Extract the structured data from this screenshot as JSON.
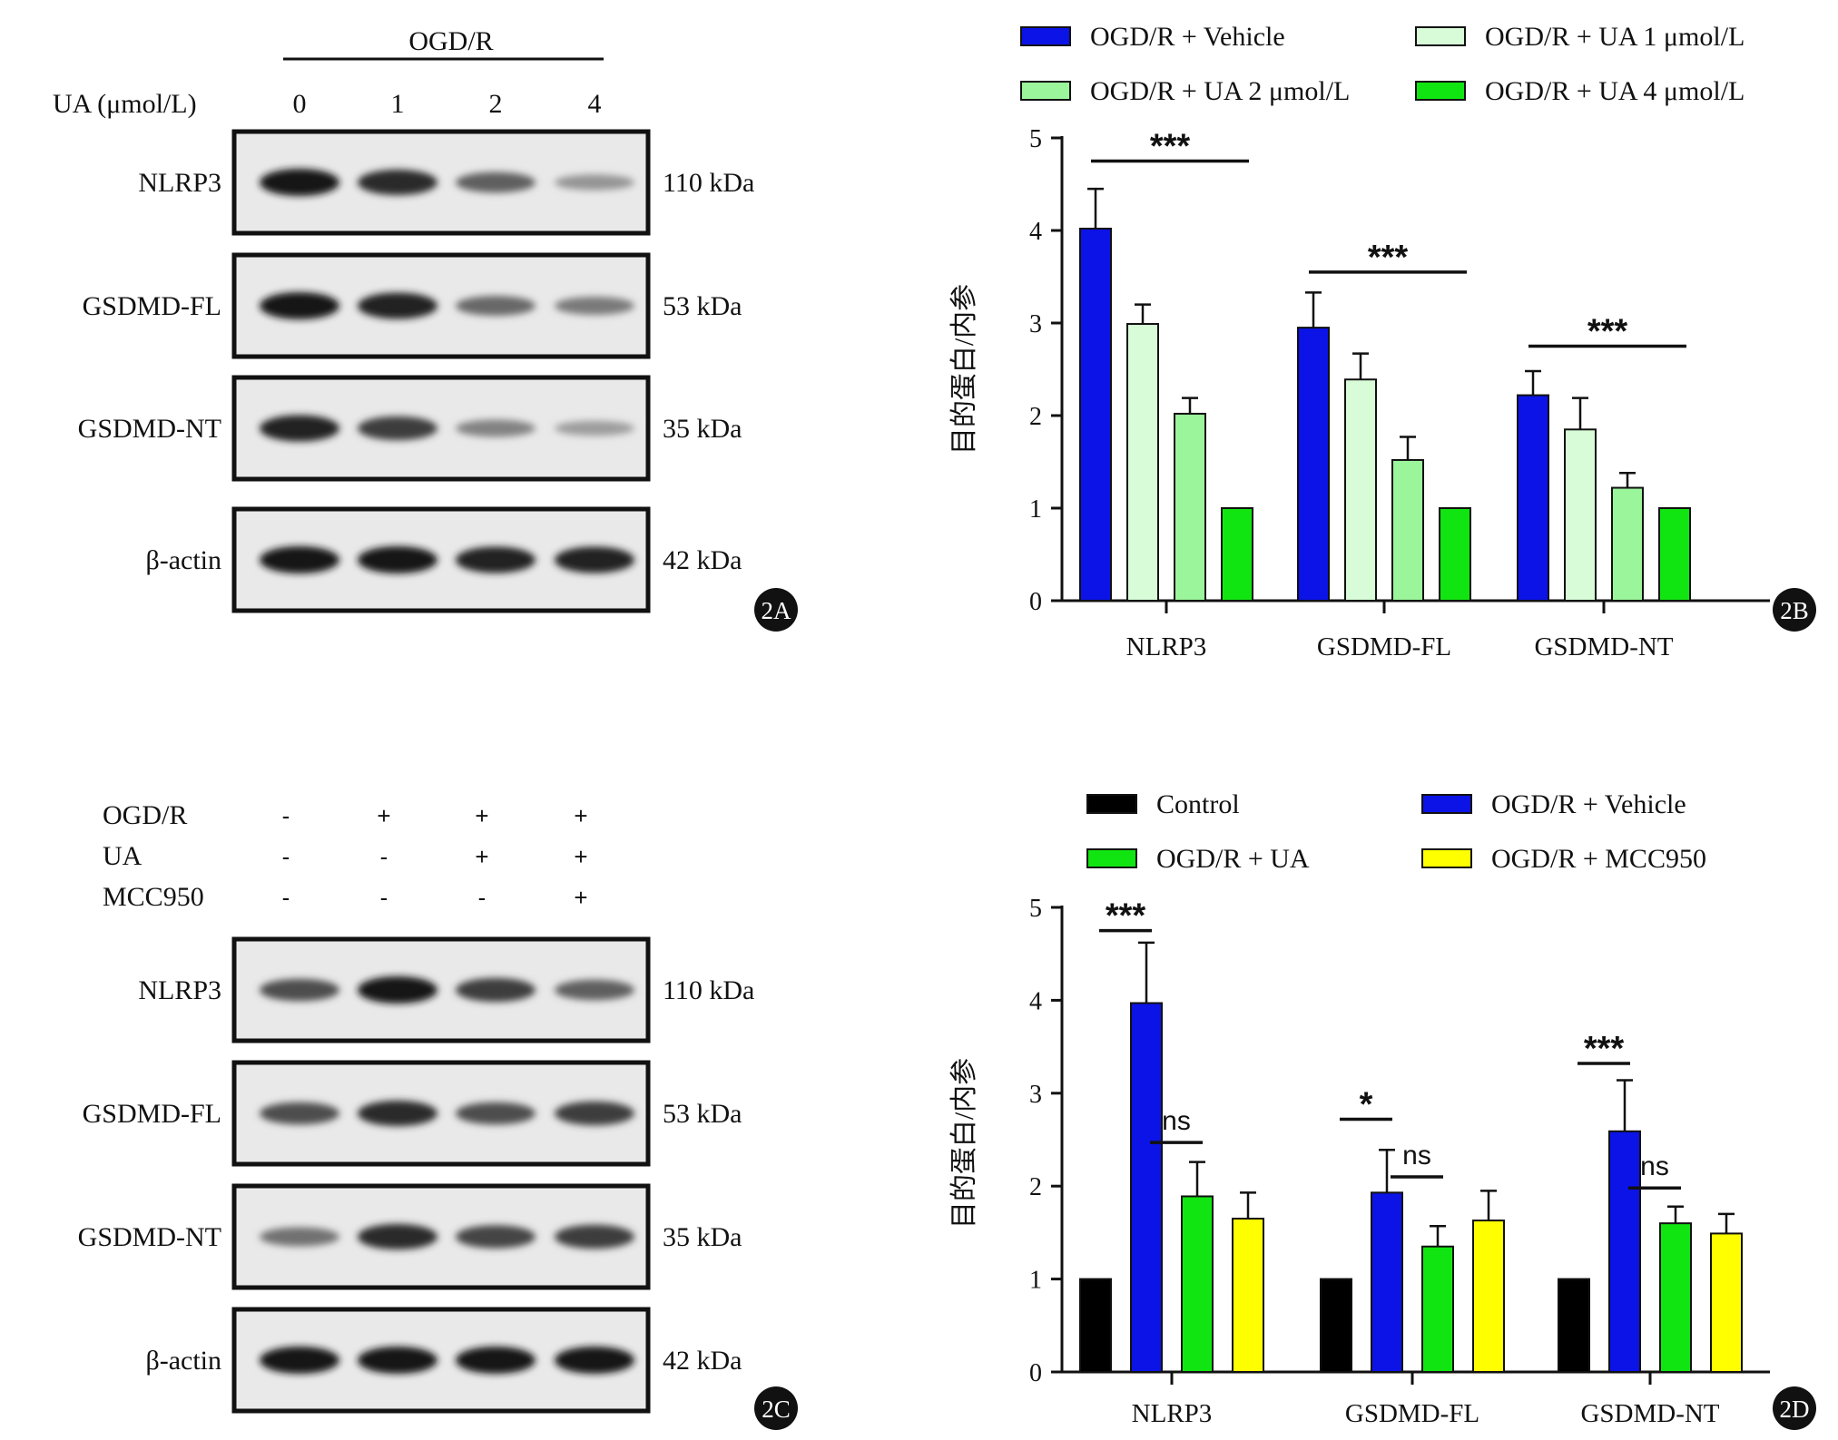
{
  "panels": [
    {
      "panel_label": "2A",
      "header": "OGD/R",
      "treatment_rows": [
        {
          "label": "UA (μmol/L)",
          "values": [
            "0",
            "1",
            "2",
            "4"
          ]
        }
      ],
      "blots": [
        {
          "protein": "NLRP3",
          "mw": "110 kDa",
          "intensities": [
            1.0,
            0.9,
            0.6,
            0.3
          ]
        },
        {
          "protein": "GSDMD-FL",
          "mw": "53 kDa",
          "intensities": [
            1.0,
            0.95,
            0.55,
            0.45
          ]
        },
        {
          "protein": "GSDMD-NT",
          "mw": "35 kDa",
          "intensities": [
            0.95,
            0.8,
            0.4,
            0.25
          ]
        },
        {
          "protein": "β-actin",
          "mw": "42 kDa",
          "intensities": [
            1.0,
            1.0,
            0.95,
            0.95
          ]
        }
      ]
    },
    {
      "panel_label": "2C",
      "header": "",
      "treatment_rows": [
        {
          "label": "OGD/R",
          "values": [
            "-",
            "+",
            "+",
            "+"
          ]
        },
        {
          "label": "UA",
          "values": [
            "-",
            "-",
            "+",
            "+"
          ]
        },
        {
          "label": "MCC950",
          "values": [
            "-",
            "-",
            "-",
            "+"
          ]
        }
      ],
      "blots": [
        {
          "protein": "NLRP3",
          "mw": "110 kDa",
          "intensities": [
            0.7,
            1.0,
            0.8,
            0.6
          ]
        },
        {
          "protein": "GSDMD-FL",
          "mw": "53 kDa",
          "intensities": [
            0.7,
            0.9,
            0.7,
            0.8
          ]
        },
        {
          "protein": "GSDMD-NT",
          "mw": "35 kDa",
          "intensities": [
            0.5,
            0.9,
            0.75,
            0.8
          ]
        },
        {
          "protein": "β-actin",
          "mw": "42 kDa",
          "intensities": [
            1.0,
            1.0,
            1.0,
            1.0
          ]
        }
      ]
    }
  ],
  "chart_data": [
    {
      "panel_label": "2B",
      "type": "bar",
      "ylabel": "目的蛋白/内参",
      "ylim": [
        0,
        5
      ],
      "yticks": [
        "0",
        "1",
        "2",
        "3",
        "4",
        "5"
      ],
      "categories": [
        "NLRP3",
        "GSDMD-FL",
        "GSDMD-NT"
      ],
      "series": [
        {
          "name": "OGD/R + Vehicle",
          "color": "#0b13e6",
          "values": [
            4.02,
            2.95,
            2.22
          ],
          "errors": [
            0.43,
            0.38,
            0.26
          ]
        },
        {
          "name": "OGD/R + UA 1 μmol/L",
          "color": "#d8fbd8",
          "values": [
            2.99,
            2.39,
            1.85
          ],
          "errors": [
            0.21,
            0.28,
            0.34
          ]
        },
        {
          "name": "OGD/R + UA 2 μmol/L",
          "color": "#9bf59b",
          "values": [
            2.02,
            1.52,
            1.22
          ],
          "errors": [
            0.17,
            0.25,
            0.16
          ]
        },
        {
          "name": "OGD/R + UA 4 μmol/L",
          "color": "#11e511",
          "values": [
            1.0,
            1.0,
            1.0
          ],
          "errors": [
            0,
            0,
            0
          ]
        }
      ],
      "legend_layout": "two-column top",
      "annotations": [
        {
          "text": "***",
          "category": "NLRP3",
          "from_series": 0,
          "to_series": 3,
          "y": 4.75
        },
        {
          "text": "***",
          "category": "GSDMD-FL",
          "from_series": 0,
          "to_series": 3,
          "y": 3.55
        },
        {
          "text": "***",
          "category": "GSDMD-NT",
          "from_series": 0,
          "to_series": 3,
          "y": 2.75
        }
      ]
    },
    {
      "panel_label": "2D",
      "type": "bar",
      "ylabel": "目的蛋白/内参",
      "ylim": [
        0,
        5
      ],
      "yticks": [
        "0",
        "1",
        "2",
        "3",
        "4",
        "5"
      ],
      "categories": [
        "NLRP3",
        "GSDMD-FL",
        "GSDMD-NT"
      ],
      "series": [
        {
          "name": "Control",
          "color": "#000000",
          "values": [
            1.0,
            1.0,
            1.0
          ],
          "errors": [
            0,
            0,
            0
          ]
        },
        {
          "name": "OGD/R + Vehicle",
          "color": "#0b13e6",
          "values": [
            3.97,
            1.93,
            2.59
          ],
          "errors": [
            0.65,
            0.46,
            0.55
          ]
        },
        {
          "name": "OGD/R + UA",
          "color": "#11e511",
          "values": [
            1.89,
            1.35,
            1.6
          ],
          "errors": [
            0.37,
            0.22,
            0.18
          ]
        },
        {
          "name": "OGD/R + MCC950",
          "color": "#ffff00",
          "values": [
            1.65,
            1.63,
            1.49
          ],
          "errors": [
            0.28,
            0.32,
            0.21
          ]
        }
      ],
      "legend_layout": "two-column top",
      "annotations": [
        {
          "text": "***",
          "category": "NLRP3",
          "from_series": 1,
          "to_series": 1,
          "y": 4.75
        },
        {
          "text": "ns",
          "category": "NLRP3",
          "from_series": 2,
          "to_series": 2,
          "y": 2.47
        },
        {
          "text": "*",
          "category": "GSDMD-FL",
          "from_series": 1,
          "to_series": 1,
          "y": 2.72
        },
        {
          "text": "ns",
          "category": "GSDMD-FL",
          "from_series": 2,
          "to_series": 2,
          "y": 2.1
        },
        {
          "text": "***",
          "category": "GSDMD-NT",
          "from_series": 1,
          "to_series": 1,
          "y": 3.32
        },
        {
          "text": "ns",
          "category": "GSDMD-NT",
          "from_series": 2,
          "to_series": 2,
          "y": 1.98
        }
      ]
    }
  ]
}
